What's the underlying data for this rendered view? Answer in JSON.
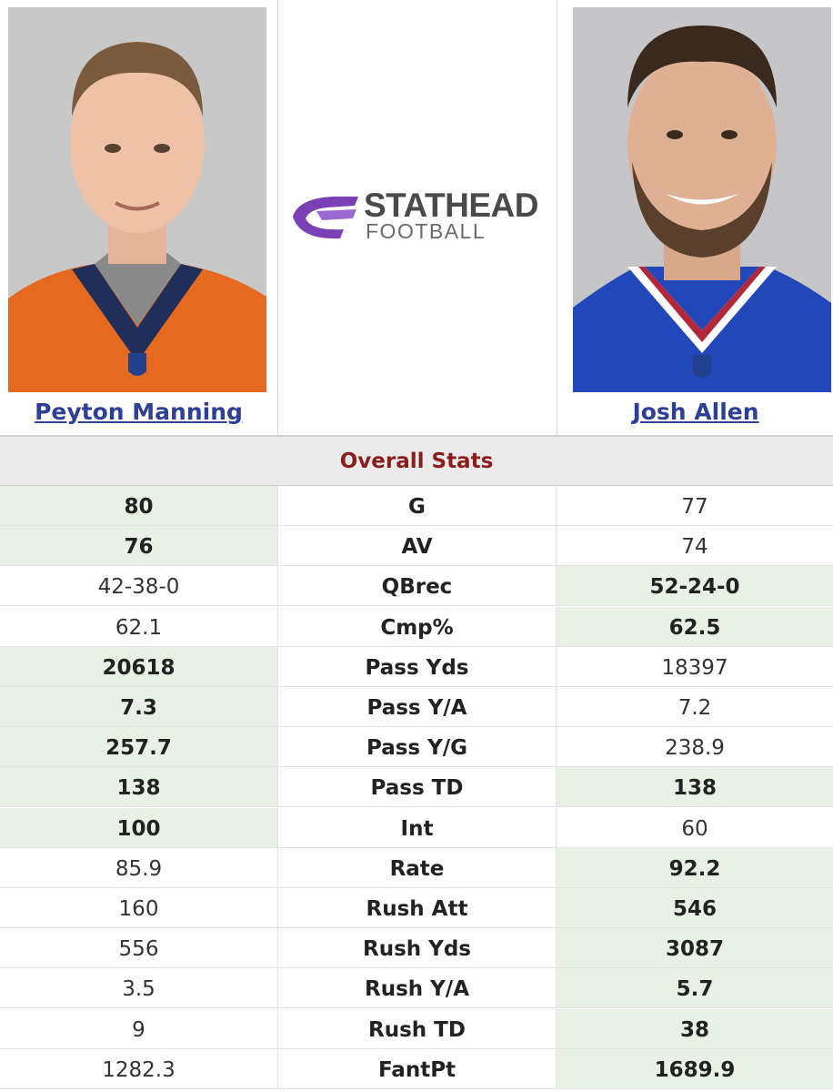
{
  "players": {
    "left": {
      "name": "Peyton Manning"
    },
    "right": {
      "name": "Josh Allen"
    }
  },
  "logo": {
    "line1": "STATHEAD",
    "line2": "FOOTBALL",
    "brand_color": "#7b3fb6"
  },
  "section_title": "Overall Stats",
  "colors": {
    "win_bg": "#e9f1e6",
    "link": "#2d3f96",
    "section_title": "#8b1d1d"
  },
  "stats": [
    {
      "label": "G",
      "left": "80",
      "right": "77",
      "winner": "left"
    },
    {
      "label": "AV",
      "left": "76",
      "right": "74",
      "winner": "left"
    },
    {
      "label": "QBrec",
      "left": "42-38-0",
      "right": "52-24-0",
      "winner": "right"
    },
    {
      "label": "Cmp%",
      "left": "62.1",
      "right": "62.5",
      "winner": "right"
    },
    {
      "label": "Pass Yds",
      "left": "20618",
      "right": "18397",
      "winner": "left"
    },
    {
      "label": "Pass Y/A",
      "left": "7.3",
      "right": "7.2",
      "winner": "left"
    },
    {
      "label": "Pass Y/G",
      "left": "257.7",
      "right": "238.9",
      "winner": "left"
    },
    {
      "label": "Pass TD",
      "left": "138",
      "right": "138",
      "winner": "both"
    },
    {
      "label": "Int",
      "left": "100",
      "right": "60",
      "winner": "left"
    },
    {
      "label": "Rate",
      "left": "85.9",
      "right": "92.2",
      "winner": "right"
    },
    {
      "label": "Rush Att",
      "left": "160",
      "right": "546",
      "winner": "right"
    },
    {
      "label": "Rush Yds",
      "left": "556",
      "right": "3087",
      "winner": "right"
    },
    {
      "label": "Rush Y/A",
      "left": "3.5",
      "right": "5.7",
      "winner": "right"
    },
    {
      "label": "Rush TD",
      "left": "9",
      "right": "38",
      "winner": "right"
    },
    {
      "label": "FantPt",
      "left": "1282.3",
      "right": "1689.9",
      "winner": "right"
    }
  ]
}
